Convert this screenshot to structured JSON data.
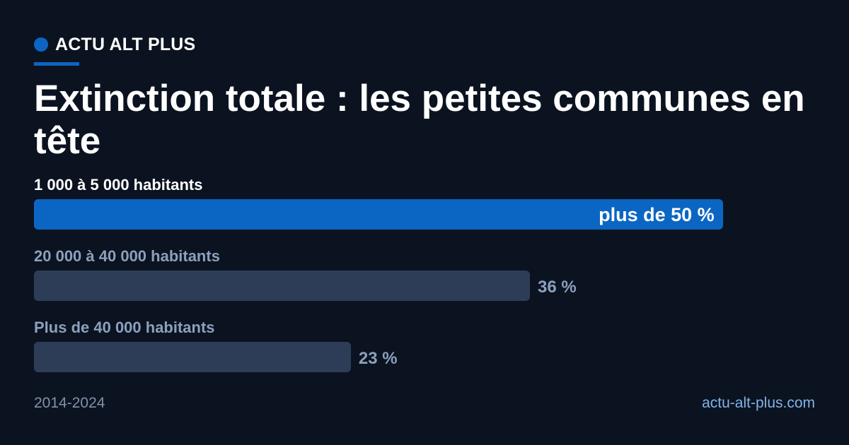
{
  "brand": {
    "name": "ACTU ALT PLUS"
  },
  "colors": {
    "background": "#0b1320",
    "accent": "#0b66c3",
    "muted_bar": "#2e3d57",
    "muted_text": "#8ca0bd",
    "footer_text": "#8190a8",
    "link": "#7fb3e8"
  },
  "chart_data": {
    "type": "bar",
    "orientation": "horizontal",
    "title": "Extinction totale : les petites communes en tête",
    "categories": [
      "1 000 à 5 000 habitants",
      "20 000 à 40 000 habitants",
      "Plus de 40 000 habitants"
    ],
    "values": [
      50,
      36,
      23
    ],
    "value_labels": [
      "plus de 50 %",
      "36 %",
      "23 %"
    ],
    "unit": "%",
    "highlight_index": 0,
    "xlim": [
      0,
      57
    ],
    "grid": false,
    "legend": "none"
  },
  "footer": {
    "period": "2014-2024",
    "site": "actu-alt-plus.com"
  }
}
